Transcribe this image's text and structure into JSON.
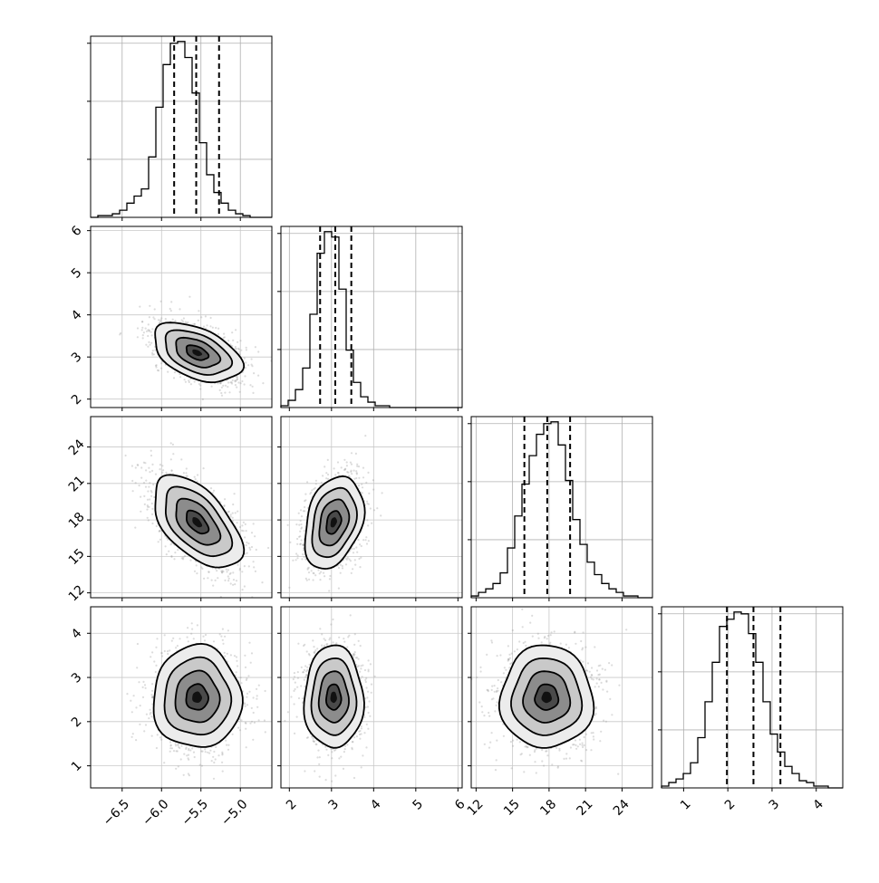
{
  "chart_data": {
    "type": "corner",
    "parameters": 4,
    "axes": [
      {
        "ticks": [
          -6.5,
          -6.0,
          -5.5,
          -5.0
        ],
        "tick_labels": [
          "−6.5",
          "−6.0",
          "−5.5",
          "−5.0"
        ],
        "range": [
          -6.9,
          -4.6
        ]
      },
      {
        "ticks": [
          2,
          3,
          4,
          5,
          6
        ],
        "tick_labels": [
          "2",
          "3",
          "4",
          "5",
          "6"
        ],
        "range": [
          1.8,
          6.1
        ]
      },
      {
        "ticks": [
          12,
          15,
          18,
          21,
          24
        ],
        "tick_labels": [
          "12",
          "15",
          "18",
          "21",
          "24"
        ],
        "range": [
          11.6,
          26.5
        ]
      },
      {
        "ticks": [
          1,
          2,
          3,
          4
        ],
        "tick_labels": [
          "1",
          "2",
          "3",
          "4"
        ],
        "range": [
          0.5,
          4.6
        ]
      }
    ],
    "histograms": [
      {
        "edges_range": [
          -6.9,
          -4.6
        ],
        "bins": 25,
        "counts": [
          0,
          1,
          1,
          2,
          4,
          8,
          12,
          16,
          34,
          62,
          86,
          98,
          99,
          90,
          70,
          42,
          24,
          14,
          8,
          4,
          2,
          1,
          0,
          0,
          0
        ],
        "quantiles": [
          -5.84,
          -5.56,
          -5.27
        ]
      },
      {
        "edges_range": [
          1.8,
          6.1
        ],
        "bins": 25,
        "counts": [
          1,
          4,
          10,
          22,
          52,
          86,
          98,
          95,
          66,
          32,
          14,
          6,
          3,
          1,
          1,
          0,
          0,
          0,
          0,
          0,
          0,
          0,
          0,
          0,
          0
        ],
        "quantiles": [
          2.73,
          3.09,
          3.47
        ]
      },
      {
        "edges_range": [
          11.6,
          26.5
        ],
        "bins": 25,
        "counts": [
          1,
          3,
          5,
          8,
          14,
          28,
          46,
          64,
          80,
          92,
          98,
          99,
          86,
          66,
          44,
          30,
          20,
          13,
          8,
          5,
          3,
          1,
          1,
          0,
          0
        ],
        "quantiles": [
          15.97,
          17.85,
          19.73
        ]
      },
      {
        "edges_range": [
          0.5,
          4.6
        ],
        "bins": 25,
        "counts": [
          1,
          3,
          5,
          8,
          14,
          28,
          48,
          70,
          90,
          94,
          98,
          97,
          86,
          70,
          48,
          30,
          20,
          12,
          8,
          4,
          3,
          1,
          1,
          0,
          0
        ],
        "quantiles": [
          1.98,
          2.58,
          3.19
        ]
      }
    ],
    "pairs": [
      {
        "row": 1,
        "col": 0,
        "mean": [
          -5.55,
          3.1
        ],
        "sd": [
          0.28,
          0.35
        ],
        "rho": -0.45
      },
      {
        "row": 2,
        "col": 0,
        "mean": [
          -5.55,
          17.8
        ],
        "sd": [
          0.28,
          1.9
        ],
        "rho": -0.55
      },
      {
        "row": 2,
        "col": 1,
        "mean": [
          3.05,
          17.8
        ],
        "sd": [
          0.35,
          1.9
        ],
        "rho": 0.3
      },
      {
        "row": 3,
        "col": 0,
        "mean": [
          -5.55,
          2.55
        ],
        "sd": [
          0.28,
          0.58
        ],
        "rho": 0.0
      },
      {
        "row": 3,
        "col": 1,
        "mean": [
          3.05,
          2.55
        ],
        "sd": [
          0.35,
          0.58
        ],
        "rho": 0.0
      },
      {
        "row": 3,
        "col": 2,
        "mean": [
          17.8,
          2.55
        ],
        "sd": [
          1.9,
          0.58
        ],
        "rho": 0.0
      }
    ],
    "contour_levels_sigma": [
      0.5,
      1.0,
      1.5,
      2.0
    ],
    "grid": true,
    "quantile_lines": "dashed",
    "xlabel": "",
    "ylabel": "",
    "title": ""
  }
}
